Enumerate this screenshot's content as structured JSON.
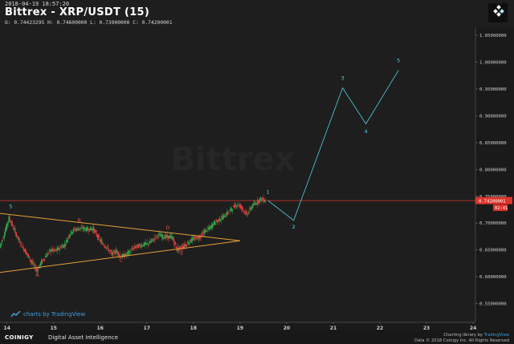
{
  "header": {
    "timestamp": "2018-04-19 18:57:20",
    "title": "Bittrex - XRP/USDT (15)",
    "ohlc": "O: 0.74423295 H: 0.74600000 L: 0.73900000 C: 0.74200001"
  },
  "logo": {
    "icon": "coinigy-diamond-icon"
  },
  "watermark": "Bittrex",
  "price_label": {
    "value": "0.74200001",
    "countdown": "02:41"
  },
  "footer": {
    "brand": "COINIGY",
    "brand_sub": "Digital Asset Intelligence",
    "charting_credit": "Charting library by",
    "charting_brand": "TradingView",
    "copyright": "Data © 2018 Coinigy Inc. All Rights Reserved"
  },
  "tv_badge": "charts by TradingView",
  "colors": {
    "background": "#1e1e1e",
    "bull": "#2ea84a",
    "bear": "#e04040",
    "triangle": "#e6a03a",
    "wave": "#4fd3e0",
    "price_line": "#e0332a",
    "price_label_bg": "#e0332a",
    "triangle_label": "#e04a4a"
  },
  "chart_data": {
    "type": "candlestick",
    "y_ticks": [
      "1.05000000",
      "1.00000000",
      "0.95000000",
      "0.90000000",
      "0.85000000",
      "0.80000000",
      "0.75000000",
      "0.70000000",
      "0.65000000",
      "0.60000000",
      "0.55000000"
    ],
    "y_tick_values": [
      1.05,
      1.0,
      0.95,
      0.9,
      0.85,
      0.8,
      0.75,
      0.7,
      0.65,
      0.6,
      0.55
    ],
    "ylim": [
      0.515,
      1.065
    ],
    "x_ticks": [
      "14",
      "15",
      "16",
      "17",
      "18",
      "19",
      "20",
      "21",
      "22",
      "23",
      "24"
    ],
    "x_tick_values": [
      14,
      15,
      16,
      17,
      18,
      19,
      20,
      21,
      22,
      23,
      24
    ],
    "xlim": [
      13.85,
      24.05
    ],
    "current_price": 0.742,
    "price_path": [
      [
        13.85,
        0.655
      ],
      [
        13.95,
        0.68
      ],
      [
        14.05,
        0.71
      ],
      [
        14.15,
        0.69
      ],
      [
        14.25,
        0.67
      ],
      [
        14.35,
        0.655
      ],
      [
        14.45,
        0.64
      ],
      [
        14.55,
        0.625
      ],
      [
        14.65,
        0.612
      ],
      [
        14.75,
        0.628
      ],
      [
        14.85,
        0.64
      ],
      [
        14.95,
        0.65
      ],
      [
        15.05,
        0.648
      ],
      [
        15.15,
        0.655
      ],
      [
        15.25,
        0.66
      ],
      [
        15.35,
        0.68
      ],
      [
        15.45,
        0.688
      ],
      [
        15.55,
        0.69
      ],
      [
        15.65,
        0.69
      ],
      [
        15.75,
        0.688
      ],
      [
        15.85,
        0.69
      ],
      [
        15.95,
        0.675
      ],
      [
        16.05,
        0.662
      ],
      [
        16.15,
        0.655
      ],
      [
        16.25,
        0.642
      ],
      [
        16.35,
        0.648
      ],
      [
        16.45,
        0.638
      ],
      [
        16.55,
        0.64
      ],
      [
        16.65,
        0.648
      ],
      [
        16.75,
        0.655
      ],
      [
        16.85,
        0.658
      ],
      [
        16.95,
        0.66
      ],
      [
        17.05,
        0.662
      ],
      [
        17.15,
        0.67
      ],
      [
        17.25,
        0.678
      ],
      [
        17.35,
        0.675
      ],
      [
        17.45,
        0.674
      ],
      [
        17.55,
        0.674
      ],
      [
        17.65,
        0.65
      ],
      [
        17.75,
        0.655
      ],
      [
        17.85,
        0.66
      ],
      [
        17.95,
        0.668
      ],
      [
        18.05,
        0.672
      ],
      [
        18.15,
        0.675
      ],
      [
        18.25,
        0.685
      ],
      [
        18.35,
        0.69
      ],
      [
        18.45,
        0.7
      ],
      [
        18.55,
        0.706
      ],
      [
        18.65,
        0.712
      ],
      [
        18.75,
        0.72
      ],
      [
        18.85,
        0.728
      ],
      [
        18.95,
        0.736
      ],
      [
        19.05,
        0.728
      ],
      [
        19.15,
        0.715
      ],
      [
        19.25,
        0.73
      ],
      [
        19.35,
        0.738
      ],
      [
        19.45,
        0.745
      ],
      [
        19.55,
        0.742
      ]
    ],
    "triangle": {
      "upper": [
        [
          13.85,
          0.718
        ],
        [
          19.0,
          0.667
        ]
      ],
      "lower": [
        [
          13.85,
          0.608
        ],
        [
          19.0,
          0.667
        ]
      ]
    },
    "triangle_labels": [
      {
        "text": "5",
        "x": 14.08,
        "y": 0.728,
        "color": "wave"
      },
      {
        "text": "A",
        "x": 14.65,
        "y": 0.6,
        "color": "label"
      },
      {
        "text": "B",
        "x": 15.55,
        "y": 0.702,
        "color": "label"
      },
      {
        "text": "C",
        "x": 16.45,
        "y": 0.628,
        "color": "label"
      },
      {
        "text": "D",
        "x": 17.45,
        "y": 0.688,
        "color": "label"
      },
      {
        "text": "E",
        "x": 17.75,
        "y": 0.641,
        "color": "label"
      }
    ],
    "wave_projection": [
      [
        19.6,
        0.742
      ],
      [
        20.15,
        0.705
      ],
      [
        21.2,
        0.952
      ],
      [
        21.7,
        0.885
      ],
      [
        22.4,
        0.985
      ]
    ],
    "wave_labels": [
      {
        "text": "1",
        "x": 19.6,
        "y": 0.755
      },
      {
        "text": "2",
        "x": 20.15,
        "y": 0.69
      },
      {
        "text": "3",
        "x": 21.2,
        "y": 0.967
      },
      {
        "text": "4",
        "x": 21.7,
        "y": 0.868
      },
      {
        "text": "5",
        "x": 22.4,
        "y": 1.0
      }
    ]
  }
}
